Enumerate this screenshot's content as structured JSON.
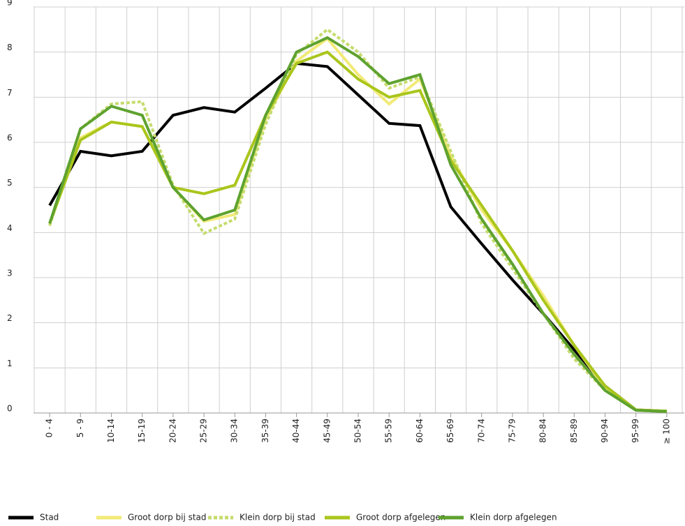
{
  "chart_data": {
    "type": "line",
    "categories": [
      "0 - 4",
      "5 - 9",
      "10-14",
      "15-19",
      "20-24",
      "25-29",
      "30-34",
      "35-39",
      "40-44",
      "45-49",
      "50-54",
      "55-59",
      "60-64",
      "65-69",
      "70-74",
      "75-79",
      "80-84",
      "85-89",
      "90-94",
      "95-99",
      "≥ 100"
    ],
    "ylim": [
      0,
      9
    ],
    "yticks": [
      0,
      1,
      2,
      3,
      4,
      5,
      6,
      7,
      8,
      9
    ],
    "grid": true,
    "series": [
      {
        "name": "Stad",
        "color": "#000000",
        "style": "solid",
        "values": [
          4.6,
          5.8,
          5.7,
          5.8,
          6.6,
          6.77,
          6.67,
          7.2,
          7.75,
          7.68,
          7.05,
          6.42,
          6.37,
          4.57,
          3.75,
          2.95,
          2.2,
          1.4,
          0.6,
          0.07,
          0.04
        ]
      },
      {
        "name": "Groot dorp bij stad",
        "color": "#f2ea78",
        "style": "solid",
        "values": [
          4.2,
          6.1,
          6.45,
          6.35,
          5.0,
          4.25,
          4.4,
          6.5,
          7.8,
          8.3,
          7.5,
          6.85,
          7.4,
          5.7,
          4.5,
          3.6,
          2.6,
          1.5,
          0.55,
          0.07,
          0.04
        ]
      },
      {
        "name": "Klein dorp bij stad",
        "color": "#c5dc6e",
        "style": "dotted",
        "values": [
          4.15,
          6.3,
          6.85,
          6.9,
          5.05,
          3.98,
          4.3,
          6.4,
          7.95,
          8.5,
          8.0,
          7.2,
          7.45,
          5.8,
          4.2,
          3.2,
          2.2,
          1.2,
          0.5,
          0.06,
          0.03
        ]
      },
      {
        "name": "Groot dorp afgelegen",
        "color": "#aac61c",
        "style": "solid",
        "values": [
          4.2,
          6.05,
          6.45,
          6.35,
          5.0,
          4.86,
          5.05,
          6.6,
          7.75,
          8.0,
          7.4,
          7.0,
          7.15,
          5.6,
          4.6,
          3.6,
          2.5,
          1.5,
          0.6,
          0.07,
          0.04
        ]
      },
      {
        "name": "Klein dorp afgelegen",
        "color": "#5ea22f",
        "style": "solid",
        "values": [
          4.2,
          6.3,
          6.8,
          6.6,
          5.0,
          4.28,
          4.5,
          6.6,
          8.0,
          8.32,
          7.9,
          7.3,
          7.5,
          5.5,
          4.3,
          3.3,
          2.2,
          1.3,
          0.5,
          0.06,
          0.03
        ]
      }
    ]
  }
}
